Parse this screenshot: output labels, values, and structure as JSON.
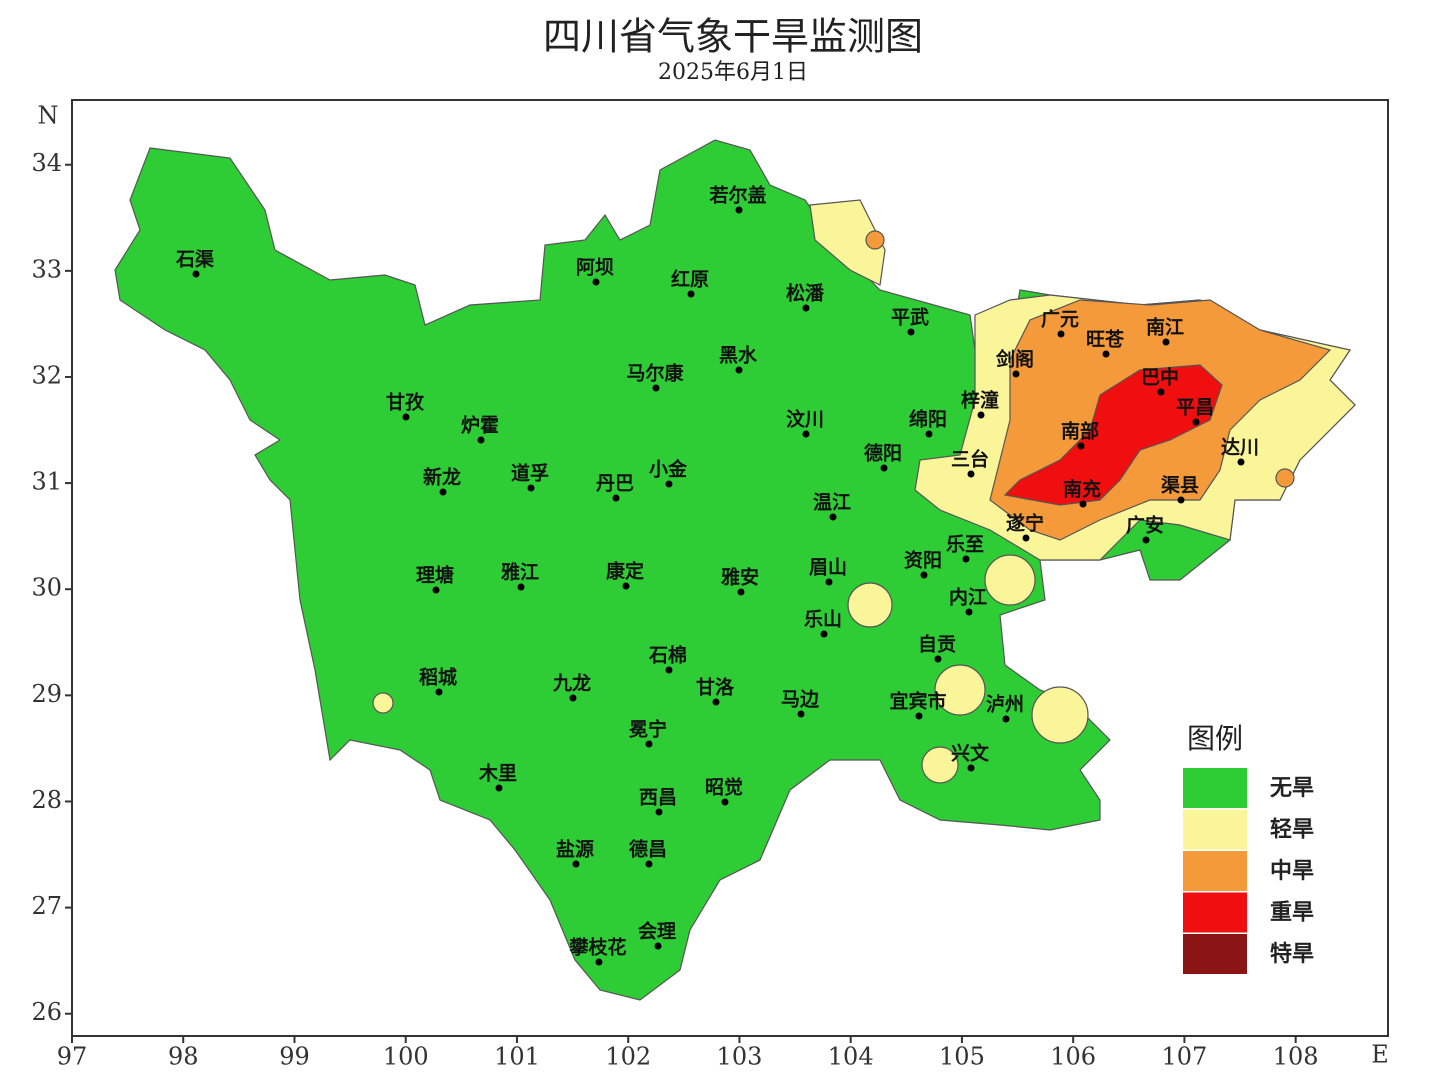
{
  "title": "四川省气象干旱监测图",
  "date": "2025年6月1日",
  "map": {
    "y_axis_label": "N",
    "x_axis_label": "E",
    "xlim": [
      97,
      108.83
    ],
    "ylim": [
      25.79,
      34.61
    ],
    "xticks": [
      97,
      98,
      99,
      100,
      101,
      102,
      103,
      104,
      105,
      106,
      107,
      108
    ],
    "yticks": [
      26,
      27,
      28,
      29,
      30,
      31,
      32,
      33,
      34
    ],
    "cities": [
      "若尔盖",
      "石渠",
      "阿坝",
      "红原",
      "松潘",
      "平武",
      "广元",
      "旺苍",
      "南江",
      "剑阁",
      "巴中",
      "马尔康",
      "黑水",
      "甘孜",
      "炉霍",
      "汶川",
      "绵阳",
      "梓潼",
      "平昌",
      "南部",
      "达川",
      "德阳",
      "三台",
      "新龙",
      "道孚",
      "丹巴",
      "小金",
      "温江",
      "南充",
      "渠县",
      "遂宁",
      "广安",
      "乐至",
      "资阳",
      "理塘",
      "雅江",
      "康定",
      "雅安",
      "眉山",
      "内江",
      "乐山",
      "自贡",
      "石棉",
      "稻城",
      "九龙",
      "甘洛",
      "马边",
      "宜宾市",
      "泸州",
      "冕宁",
      "兴文",
      "木里",
      "西昌",
      "昭觉",
      "盐源",
      "德昌",
      "会理",
      "攀枝花"
    ]
  },
  "legend": {
    "title": "图例",
    "items": [
      {
        "label": "无旱",
        "color": "#2ecc35"
      },
      {
        "label": "轻旱",
        "color": "#fbf59a"
      },
      {
        "label": "中旱",
        "color": "#f59a3a"
      },
      {
        "label": "重旱",
        "color": "#f00e0e"
      },
      {
        "label": "特旱",
        "color": "#8b1414"
      }
    ]
  }
}
